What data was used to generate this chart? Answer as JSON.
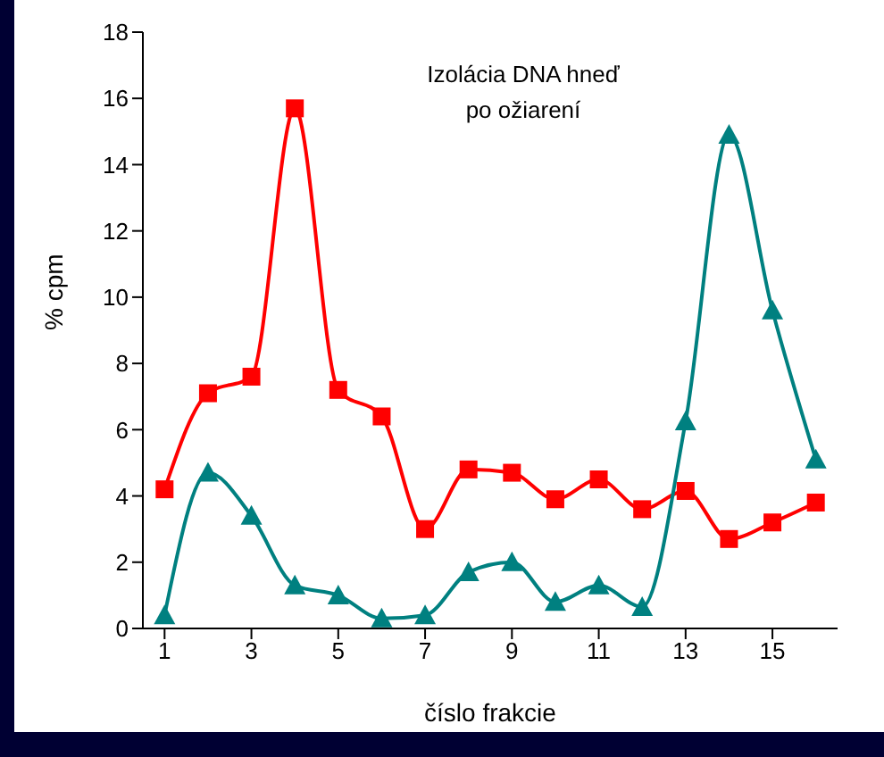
{
  "chart_data": {
    "type": "line",
    "xlabel": "číslo frakcie",
    "ylabel": "% cpm",
    "annotations": [
      "Izolácia DNA hneď\npo ožiarení"
    ],
    "x": [
      1,
      2,
      3,
      4,
      5,
      6,
      7,
      8,
      9,
      10,
      11,
      12,
      13,
      14,
      15,
      16
    ],
    "xlim": [
      0.5,
      16.5
    ],
    "xticks": [
      1,
      3,
      5,
      7,
      9,
      11,
      13,
      15
    ],
    "ylim": [
      0,
      18
    ],
    "yticks": [
      0,
      2,
      4,
      6,
      8,
      10,
      12,
      14,
      16,
      18
    ],
    "grid": false,
    "legend": false,
    "series": [
      {
        "color": "#ff0000",
        "marker": "square",
        "values": [
          4.2,
          7.1,
          7.6,
          15.7,
          7.2,
          6.4,
          3.0,
          4.8,
          4.7,
          3.9,
          4.5,
          3.6,
          4.15,
          2.7,
          3.2,
          3.8
        ]
      },
      {
        "color": "#008080",
        "marker": "triangle",
        "values": [
          0.4,
          4.7,
          3.4,
          1.3,
          1.0,
          0.3,
          0.4,
          1.7,
          2.0,
          0.8,
          1.3,
          0.65,
          6.25,
          14.9,
          9.6,
          5.1
        ]
      }
    ]
  }
}
